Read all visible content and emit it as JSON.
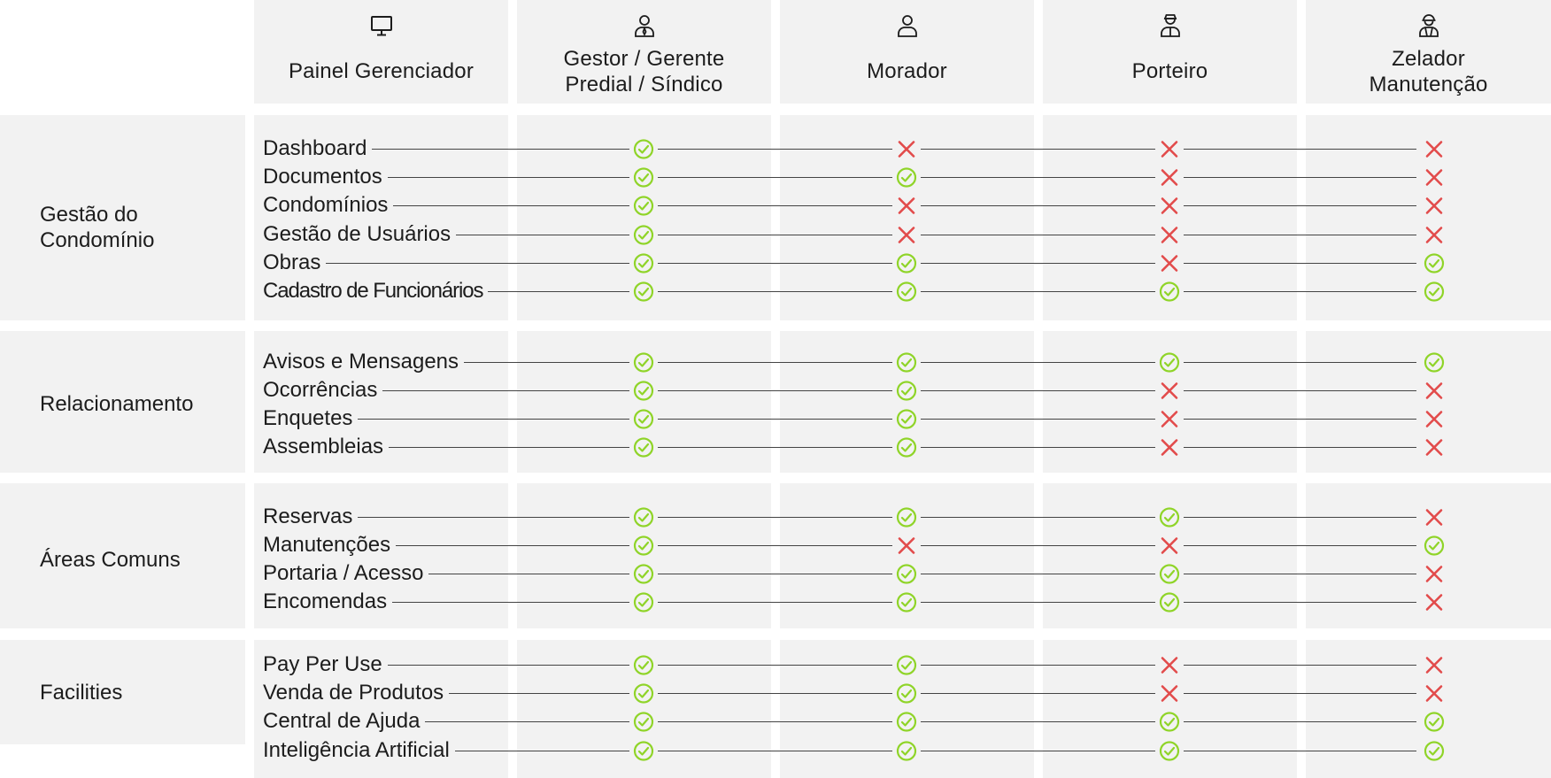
{
  "columns": [
    {
      "label": "Painel Gerenciador",
      "icon": "monitor-icon"
    },
    {
      "label": "Gestor / Gerente Predial / Síndico",
      "icon": "user-tie-icon"
    },
    {
      "label": "Morador",
      "icon": "user-icon"
    },
    {
      "label": "Porteiro",
      "icon": "doorman-icon"
    },
    {
      "label": "Zelador Manutenção",
      "icon": "maintenance-worker-icon"
    }
  ],
  "legend": {
    "allowed_icon": "check-circle-icon",
    "denied_icon": "x-icon"
  },
  "colors": {
    "check": "#8fd428",
    "cross": "#e24b4b",
    "panel": "#f2f2f2",
    "line": "#444444"
  },
  "groups": [
    {
      "label": "Gestão do Condomínio",
      "features": [
        {
          "name": "Dashboard",
          "access": [
            true,
            false,
            false,
            false
          ]
        },
        {
          "name": "Documentos",
          "access": [
            true,
            true,
            false,
            false
          ]
        },
        {
          "name": "Condomínios",
          "access": [
            true,
            false,
            false,
            false
          ]
        },
        {
          "name": "Gestão de Usuários",
          "access": [
            true,
            false,
            false,
            false
          ]
        },
        {
          "name": "Obras",
          "access": [
            true,
            true,
            false,
            true
          ]
        },
        {
          "name": "Cadastro de Funcionários",
          "access": [
            true,
            true,
            true,
            true
          ]
        }
      ]
    },
    {
      "label": "Relacionamento",
      "features": [
        {
          "name": "Avisos e Mensagens",
          "access": [
            true,
            true,
            true,
            true
          ]
        },
        {
          "name": "Ocorrências",
          "access": [
            true,
            true,
            false,
            false
          ]
        },
        {
          "name": "Enquetes",
          "access": [
            true,
            true,
            false,
            false
          ]
        },
        {
          "name": "Assembleias",
          "access": [
            true,
            true,
            false,
            false
          ]
        }
      ]
    },
    {
      "label": "Áreas Comuns",
      "features": [
        {
          "name": "Reservas",
          "access": [
            true,
            true,
            true,
            false
          ]
        },
        {
          "name": "Manutenções",
          "access": [
            true,
            false,
            false,
            true
          ]
        },
        {
          "name": "Portaria / Acesso",
          "access": [
            true,
            true,
            true,
            false
          ]
        },
        {
          "name": "Encomendas",
          "access": [
            true,
            true,
            true,
            false
          ]
        }
      ]
    },
    {
      "label": "Facilities",
      "features": [
        {
          "name": "Pay Per Use",
          "access": [
            true,
            true,
            false,
            false
          ]
        },
        {
          "name": "Venda de Produtos",
          "access": [
            true,
            true,
            false,
            false
          ]
        },
        {
          "name": "Central de Ajuda",
          "access": [
            true,
            true,
            true,
            true
          ]
        },
        {
          "name": "Inteligência Artificial",
          "access": [
            true,
            true,
            true,
            true
          ]
        }
      ]
    }
  ]
}
